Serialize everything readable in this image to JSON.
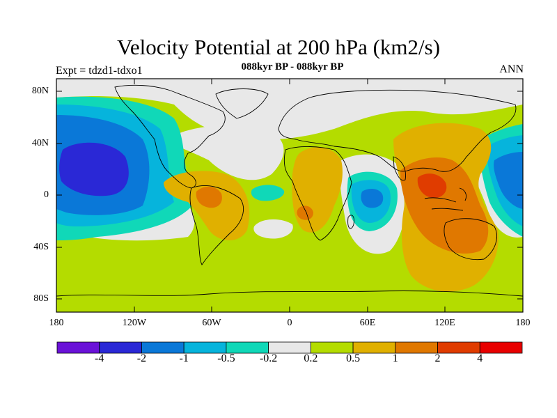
{
  "title": "Velocity Potential at 200 hPa (km2/s)",
  "subtitle": "088kyr BP - 088kyr BP",
  "left_string": "Expt = tdzd1-tdxo1",
  "right_string": "ANN",
  "lat_ticks": [
    "80N",
    "40N",
    "0",
    "40S",
    "80S"
  ],
  "lon_ticks": [
    "180",
    "120W",
    "60W",
    "0",
    "60E",
    "120E",
    "180"
  ],
  "colorbar": {
    "labels": [
      "-4",
      "-2",
      "-1",
      "-0.5",
      "-0.2",
      "0.2",
      "0.5",
      "1",
      "2",
      "4"
    ],
    "colors": [
      "#6a12d8",
      "#2a28d6",
      "#0a78d8",
      "#06b4dc",
      "#10d8b8",
      "#e8e8e8",
      "#b4dc00",
      "#e0b000",
      "#e07800",
      "#e03c00",
      "#e80000"
    ]
  },
  "chart_data": {
    "type": "heatmap",
    "title": "Velocity Potential at 200 hPa (km2/s)",
    "subtitle": "088kyr BP - 088kyr BP",
    "projection": "cylindrical equidistant",
    "xlim": [
      -180,
      180
    ],
    "ylim": [
      -90,
      90
    ],
    "contour_levels": [
      -4,
      -2,
      -1,
      -0.5,
      -0.2,
      0.2,
      0.5,
      1,
      2,
      4
    ],
    "features": [
      {
        "name": "central North Pacific minimum",
        "lon": -150,
        "lat": 10,
        "value": -2.5
      },
      {
        "name": "western Indian Ocean minimum",
        "lon": 65,
        "lat": 0,
        "value": -1.2
      },
      {
        "name": "Maritime Continent maximum",
        "lon": 105,
        "lat": 5,
        "value": 2.5
      },
      {
        "name": "South America maximum",
        "lon": -62,
        "lat": -5,
        "value": 1.5
      },
      {
        "name": "Africa maximum",
        "lon": 18,
        "lat": -12,
        "value": 1.2
      },
      {
        "name": "western Pacific minimum",
        "lon": 170,
        "lat": 5,
        "value": -1.2
      }
    ]
  }
}
